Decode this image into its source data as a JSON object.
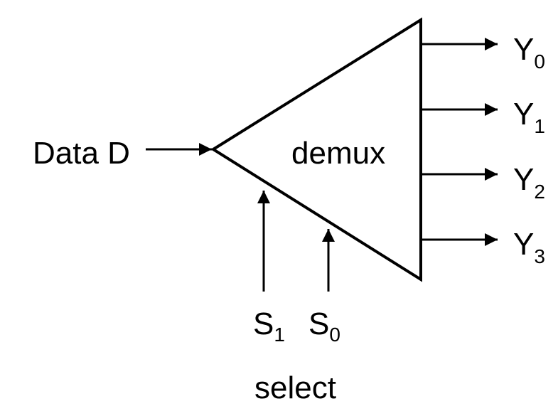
{
  "diagram": {
    "type": "demultiplexer-block",
    "block_label": "demux",
    "input": {
      "label": "Data D"
    },
    "outputs": [
      {
        "name": "output-y0",
        "base": "Y",
        "subscript": "0"
      },
      {
        "name": "output-y1",
        "base": "Y",
        "subscript": "1"
      },
      {
        "name": "output-y2",
        "base": "Y",
        "subscript": "2"
      },
      {
        "name": "output-y3",
        "base": "Y",
        "subscript": "3"
      }
    ],
    "select_lines": [
      {
        "name": "select-s1",
        "base": "S",
        "subscript": "1"
      },
      {
        "name": "select-s0",
        "base": "S",
        "subscript": "0"
      }
    ],
    "select_caption": "select"
  }
}
